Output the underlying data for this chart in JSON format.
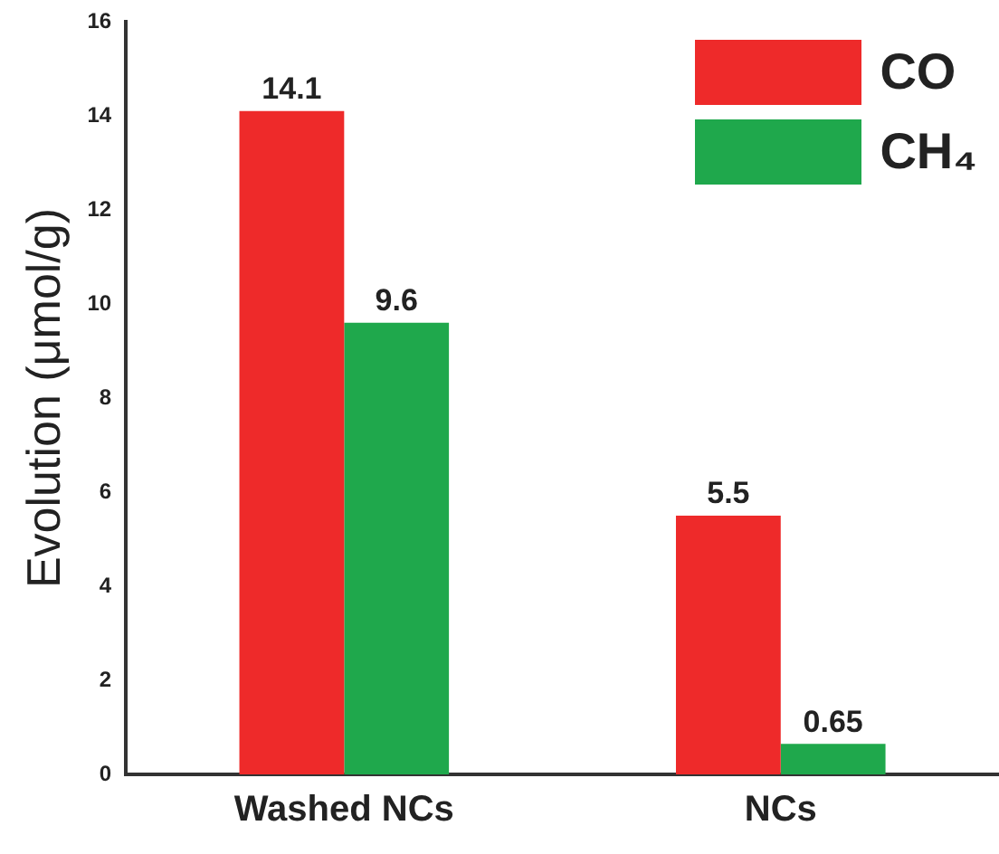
{
  "chart_data": {
    "type": "bar",
    "ylabel": "Evolution (μmol/g)",
    "categories": [
      "Washed NCs",
      "NCs"
    ],
    "series": [
      {
        "name": "CO",
        "color": "#ee2a2a",
        "values": [
          14.1,
          5.5
        ]
      },
      {
        "name": "CH₄",
        "color": "#1fa84c",
        "values": [
          9.6,
          0.65
        ]
      }
    ],
    "ylim": [
      0,
      16
    ],
    "yticks": [
      0,
      2,
      4,
      6,
      8,
      10,
      12,
      14,
      16
    ],
    "grid": false,
    "legend": "top right",
    "data_labels": true
  }
}
